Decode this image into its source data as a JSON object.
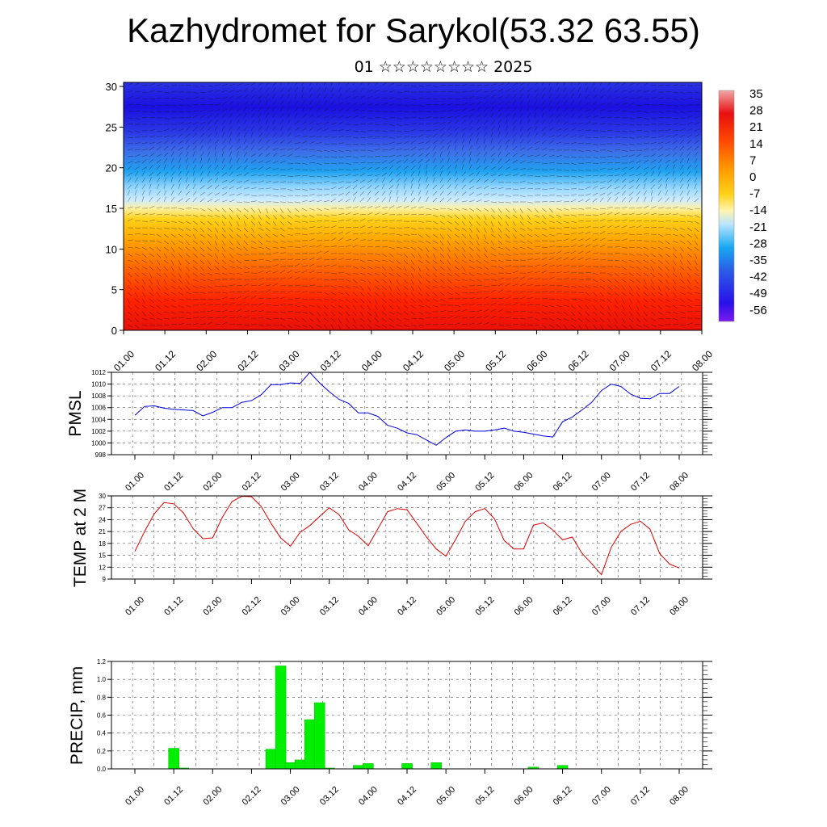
{
  "header": {
    "title": "Kazhydromet for Sarykol(53.32 63.55)",
    "subtitle": "01 ☆☆☆☆☆☆☆☆ 2025"
  },
  "colors": {
    "pmsl_line": "#0000dd",
    "temp_line": "#dd0000",
    "precip_bar": "#00ee00",
    "precip_bar_edge": "#00aa00"
  },
  "chart_data": [
    {
      "type": "heatmap",
      "title": "",
      "xlabel": "",
      "ylabel": "",
      "x_tick_labels": [
        "01.00",
        "01.12",
        "02.00",
        "02.12",
        "03.00",
        "03.12",
        "04.00",
        "04.12",
        "05.00",
        "05.12",
        "06.00",
        "06.12",
        "07.00",
        "07.12",
        "08.00"
      ],
      "y_ticks": [
        0,
        5,
        10,
        15,
        20,
        25,
        30
      ],
      "ylim": [
        0,
        30.5
      ],
      "colorbar_labels": [
        "35",
        "28",
        "21",
        "14",
        "7",
        "0",
        "-7",
        "-14",
        "-21",
        "-28",
        "-35",
        "-42",
        "-49",
        "-56"
      ],
      "approx_temperature_by_level": [
        {
          "level": 0,
          "value": 28
        },
        {
          "level": 5,
          "value": 18
        },
        {
          "level": 10,
          "value": 10
        },
        {
          "level": 15,
          "value": -7
        },
        {
          "level": 17,
          "value": -21
        },
        {
          "level": 20,
          "value": -35
        },
        {
          "level": 24,
          "value": -49
        },
        {
          "level": 28,
          "value": -56
        },
        {
          "level": 30,
          "value": -49
        }
      ],
      "overlay": "wind barbs"
    },
    {
      "type": "line",
      "ylabel": "PMSL",
      "x_tick_labels": [
        "01.00",
        "01.12",
        "02.00",
        "02.12",
        "03.00",
        "03.12",
        "04.00",
        "04.12",
        "05.00",
        "05.12",
        "06.00",
        "06.12",
        "07.00",
        "07.12",
        "08.00"
      ],
      "ylim": [
        998,
        1012
      ],
      "y_ticks": [
        998,
        1000,
        1002,
        1004,
        1006,
        1008,
        1010,
        1012
      ],
      "grid": true,
      "x": [
        0,
        3,
        6,
        9,
        12,
        15,
        18,
        21,
        24,
        27,
        30,
        33,
        36,
        39,
        42,
        45,
        48,
        51,
        54,
        57,
        60,
        63,
        66,
        69,
        72,
        75,
        78,
        81,
        84,
        87,
        90,
        93,
        96,
        99,
        102,
        105,
        108,
        111,
        114,
        117,
        120,
        123,
        126,
        129,
        132,
        135,
        138,
        141,
        144,
        147,
        150,
        153,
        156,
        159,
        162,
        165,
        168
      ],
      "values": [
        1004.7,
        1006.2,
        1006.3,
        1005.9,
        1005.7,
        1005.6,
        1005.5,
        1004.6,
        1005.2,
        1006,
        1006,
        1006.9,
        1007.2,
        1008.2,
        1009.9,
        1009.9,
        1010.2,
        1010.1,
        1012,
        1010.2,
        1008.7,
        1007.4,
        1006.7,
        1005.1,
        1005.1,
        1004.5,
        1003,
        1002.5,
        1001.7,
        1001.4,
        1000.5,
        999.6,
        1000.9,
        1002,
        1002.2,
        1002,
        1002,
        1002.2,
        1002.5,
        1002,
        1001.8,
        1001.5,
        1001.2,
        1001,
        1003.6,
        1004.4,
        1005.6,
        1006.9,
        1008.9,
        1010,
        1009.6,
        1008.3,
        1007.6,
        1007.5,
        1008.4,
        1008.4,
        1009.6
      ]
    },
    {
      "type": "line",
      "ylabel": "TEMP at 2 M",
      "x_tick_labels": [
        "01.00",
        "01.12",
        "02.00",
        "02.12",
        "03.00",
        "03.12",
        "04.00",
        "04.12",
        "05.00",
        "05.12",
        "06.00",
        "06.12",
        "07.00",
        "07.12",
        "08.00"
      ],
      "ylim": [
        9,
        30
      ],
      "y_ticks": [
        9,
        12,
        15,
        18,
        21,
        24,
        27,
        30
      ],
      "grid": true,
      "x": [
        0,
        3,
        6,
        9,
        12,
        15,
        18,
        21,
        24,
        27,
        30,
        33,
        36,
        39,
        42,
        45,
        48,
        51,
        54,
        57,
        60,
        63,
        66,
        69,
        72,
        75,
        78,
        81,
        84,
        87,
        90,
        93,
        96,
        99,
        102,
        105,
        108,
        111,
        114,
        117,
        120,
        123,
        126,
        129,
        132,
        135,
        138,
        141,
        144,
        147,
        150,
        153,
        156,
        159,
        162,
        165,
        168
      ],
      "values": [
        16,
        21,
        25.5,
        28.3,
        28,
        25.7,
        21.7,
        19.2,
        19.4,
        24.6,
        28.6,
        29.9,
        29.8,
        27.3,
        23.1,
        19.4,
        17.3,
        20.8,
        22.5,
        24.8,
        27,
        25.3,
        21.4,
        19.8,
        17.4,
        21.7,
        26,
        26.8,
        26.5,
        23.1,
        19.6,
        16.6,
        14.8,
        19,
        23.6,
        26,
        26.8,
        24.2,
        18.7,
        16.6,
        16.6,
        22.6,
        23.2,
        21.4,
        18.9,
        19.6,
        15.5,
        12.9,
        10.1,
        17,
        21,
        22.8,
        23.6,
        21.6,
        15.4,
        12.8,
        11.8
      ]
    },
    {
      "type": "bar",
      "ylabel": "PRECIP, mm",
      "x_tick_labels": [
        "01.00",
        "01.12",
        "02.00",
        "02.12",
        "03.00",
        "03.12",
        "04.00",
        "04.12",
        "05.00",
        "05.12",
        "06.00",
        "06.12",
        "07.00",
        "07.12",
        "08.00"
      ],
      "ylim": [
        0,
        1.2
      ],
      "y_ticks": [
        "0.0",
        "0.2",
        "0.4",
        "0.6",
        "0.8",
        "1.0",
        "1.2"
      ],
      "grid": true,
      "x": [
        12,
        15,
        42,
        45,
        48,
        51,
        54,
        57,
        60,
        69,
        72,
        84,
        93,
        123,
        132
      ],
      "values": [
        0.23,
        0.01,
        0.22,
        1.15,
        0.07,
        0.1,
        0.55,
        0.74,
        0.01,
        0.04,
        0.06,
        0.06,
        0.07,
        0.02,
        0.04
      ]
    }
  ]
}
